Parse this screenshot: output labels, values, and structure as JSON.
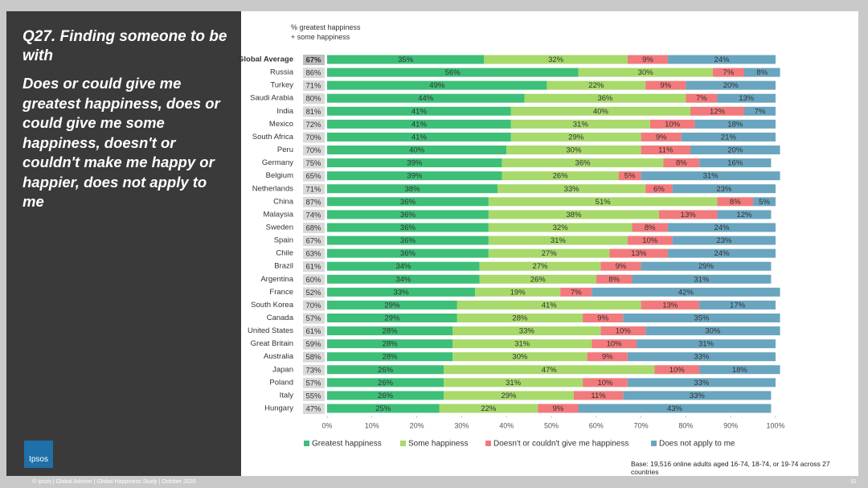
{
  "slide": {
    "title": "Q27. Finding someone to be with",
    "subtitle": "Does or could give me greatest happiness, does or could give me some happiness, doesn't or couldn't make me happy or happier, does not apply to me",
    "logo": "Ipsos",
    "footer": "© Ipsos | Global Advisor | Global Happiness Study | October 2020",
    "page_number": "32",
    "base_note": "Base: 19,516 online adults aged 16-74, 18-74, or 19-74 across 27 countries"
  },
  "chart_data": {
    "type": "stacked-bar-horizontal",
    "categories": [
      "Global Average",
      "Russia",
      "Turkey",
      "Saudi Arabia",
      "India",
      "Mexico",
      "South Africa",
      "Peru",
      "Germany",
      "Belgium",
      "Netherlands",
      "China",
      "Malaysia",
      "Sweden",
      "Spain",
      "Chile",
      "Brazil",
      "Argentina",
      "France",
      "South Korea",
      "Canada",
      "United States",
      "Great Britain",
      "Australia",
      "Japan",
      "Poland",
      "Italy",
      "Hungary"
    ],
    "series": [
      {
        "name": "Greatest happiness",
        "color": "#3dbf78",
        "values": [
          35,
          56,
          49,
          44,
          41,
          41,
          41,
          40,
          39,
          39,
          38,
          36,
          36,
          36,
          36,
          36,
          34,
          34,
          33,
          29,
          29,
          28,
          28,
          28,
          26,
          26,
          26,
          25
        ],
        "value_labels": [
          "35%",
          "56%",
          "49%",
          "44%",
          "41%",
          "41%",
          "41%",
          "40%",
          "39%",
          "39%",
          "38%",
          "36%",
          "36%",
          "36%",
          "36%",
          "36%",
          "34%",
          "34%",
          "33%",
          "29%",
          "29%",
          "28%",
          "28%",
          "28%",
          "26%",
          "26%",
          "26%",
          "25%"
        ]
      },
      {
        "name": "Some happiness",
        "color": "#a8d96b",
        "values": [
          32,
          30,
          22,
          36,
          40,
          31,
          29,
          30,
          36,
          26,
          33,
          51,
          38,
          32,
          31,
          27,
          27,
          26,
          19,
          41,
          28,
          33,
          31,
          30,
          47,
          31,
          29,
          22
        ],
        "value_labels": [
          "32%",
          "30%",
          "22%",
          "36%",
          "40%",
          "31%",
          "29%",
          "30%",
          "36%",
          "26%",
          "33%",
          "51%",
          "38%",
          "32%",
          "31%",
          "27%",
          "27%",
          "26%",
          "19%",
          "41%",
          "28%",
          "33%",
          "31%",
          "30%",
          "47%",
          "31%",
          "29%",
          "22%"
        ]
      },
      {
        "name": "Doesn't or couldn't give me happiness",
        "color": "#f27a7c",
        "values": [
          9,
          7,
          9,
          7,
          12,
          10,
          9,
          11,
          8,
          5,
          6,
          8,
          13,
          8,
          10,
          13,
          9,
          8,
          7,
          13,
          9,
          10,
          10,
          9,
          10,
          10,
          11,
          9
        ],
        "value_labels": [
          "9%",
          "7%",
          "9%",
          "7%",
          "12%",
          "10%",
          "9%",
          "11%",
          "8%",
          "5%",
          "6%",
          "8%",
          "13%",
          "8%",
          "10%",
          "13%",
          "9%",
          "8%",
          "7%",
          "13%",
          "9%",
          "10%",
          "10%",
          "9%",
          "10%",
          "10%",
          "11%",
          "9%"
        ]
      },
      {
        "name": "Does not apply to me",
        "color": "#6aa5bf",
        "values": [
          24,
          8,
          20,
          13,
          7,
          18,
          21,
          20,
          16,
          31,
          23,
          5,
          12,
          24,
          23,
          24,
          29,
          31,
          42,
          17,
          35,
          30,
          31,
          33,
          18,
          33,
          33,
          43
        ],
        "value_labels": [
          "24%",
          "8%",
          "20%",
          "13%",
          "7%",
          "18%",
          "21%",
          "20%",
          "16%",
          "31%",
          "23%",
          "5%",
          "12%",
          "24%",
          "23%",
          "24%",
          "29%",
          "31%",
          "42%",
          "17%",
          "35%",
          "30%",
          "31%",
          "33%",
          "18%",
          "33%",
          "33%",
          "43%"
        ]
      }
    ],
    "totals": {
      "name": "% greatest happiness + some happiness",
      "values": [
        67,
        86,
        71,
        80,
        81,
        72,
        70,
        70,
        75,
        65,
        71,
        87,
        74,
        68,
        67,
        63,
        61,
        60,
        52,
        70,
        57,
        61,
        59,
        58,
        73,
        57,
        55,
        47
      ],
      "value_labels": [
        "67%",
        "86%",
        "71%",
        "80%",
        "81%",
        "72%",
        "70%",
        "70%",
        "75%",
        "65%",
        "71%",
        "87%",
        "74%",
        "68%",
        "67%",
        "63%",
        "61%",
        "60%",
        "52%",
        "70%",
        "57%",
        "61%",
        "59%",
        "58%",
        "73%",
        "57%",
        "55%",
        "47%"
      ]
    },
    "xlim": [
      0,
      100
    ],
    "xticks": [
      {
        "value": 0,
        "label": "0%"
      },
      {
        "value": 10,
        "label": "10%"
      },
      {
        "value": 20,
        "label": "20%"
      },
      {
        "value": 30,
        "label": "30%"
      },
      {
        "value": 40,
        "label": "40%"
      },
      {
        "value": 50,
        "label": "50%"
      },
      {
        "value": 60,
        "label": "60%"
      },
      {
        "value": 70,
        "label": "70%"
      },
      {
        "value": 80,
        "label": "80%"
      },
      {
        "value": 90,
        "label": "90%"
      },
      {
        "value": 100,
        "label": "100%"
      }
    ],
    "legend": "bottom"
  }
}
